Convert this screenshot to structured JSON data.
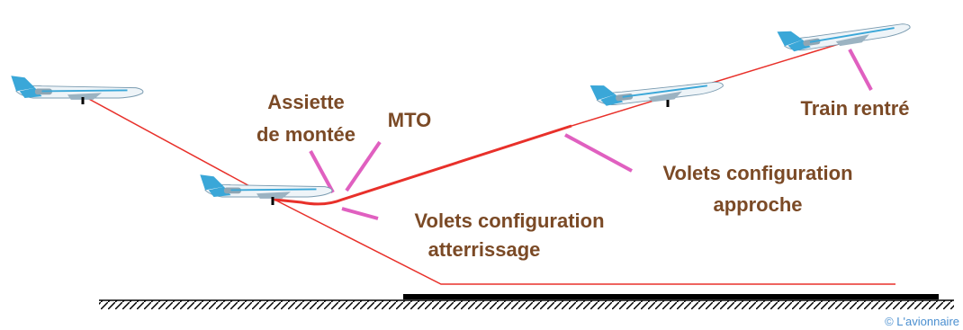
{
  "labels": [
    {
      "lines": [
        "Assiette",
        "de montée"
      ]
    },
    {
      "lines": [
        "MTO"
      ]
    },
    {
      "lines": [
        "Volets configuration",
        "atterrissage"
      ]
    },
    {
      "lines": [
        "Volets configuration",
        "approche"
      ]
    },
    {
      "lines": [
        "Train rentré"
      ]
    }
  ],
  "copyright": "© L'avionnaire"
}
